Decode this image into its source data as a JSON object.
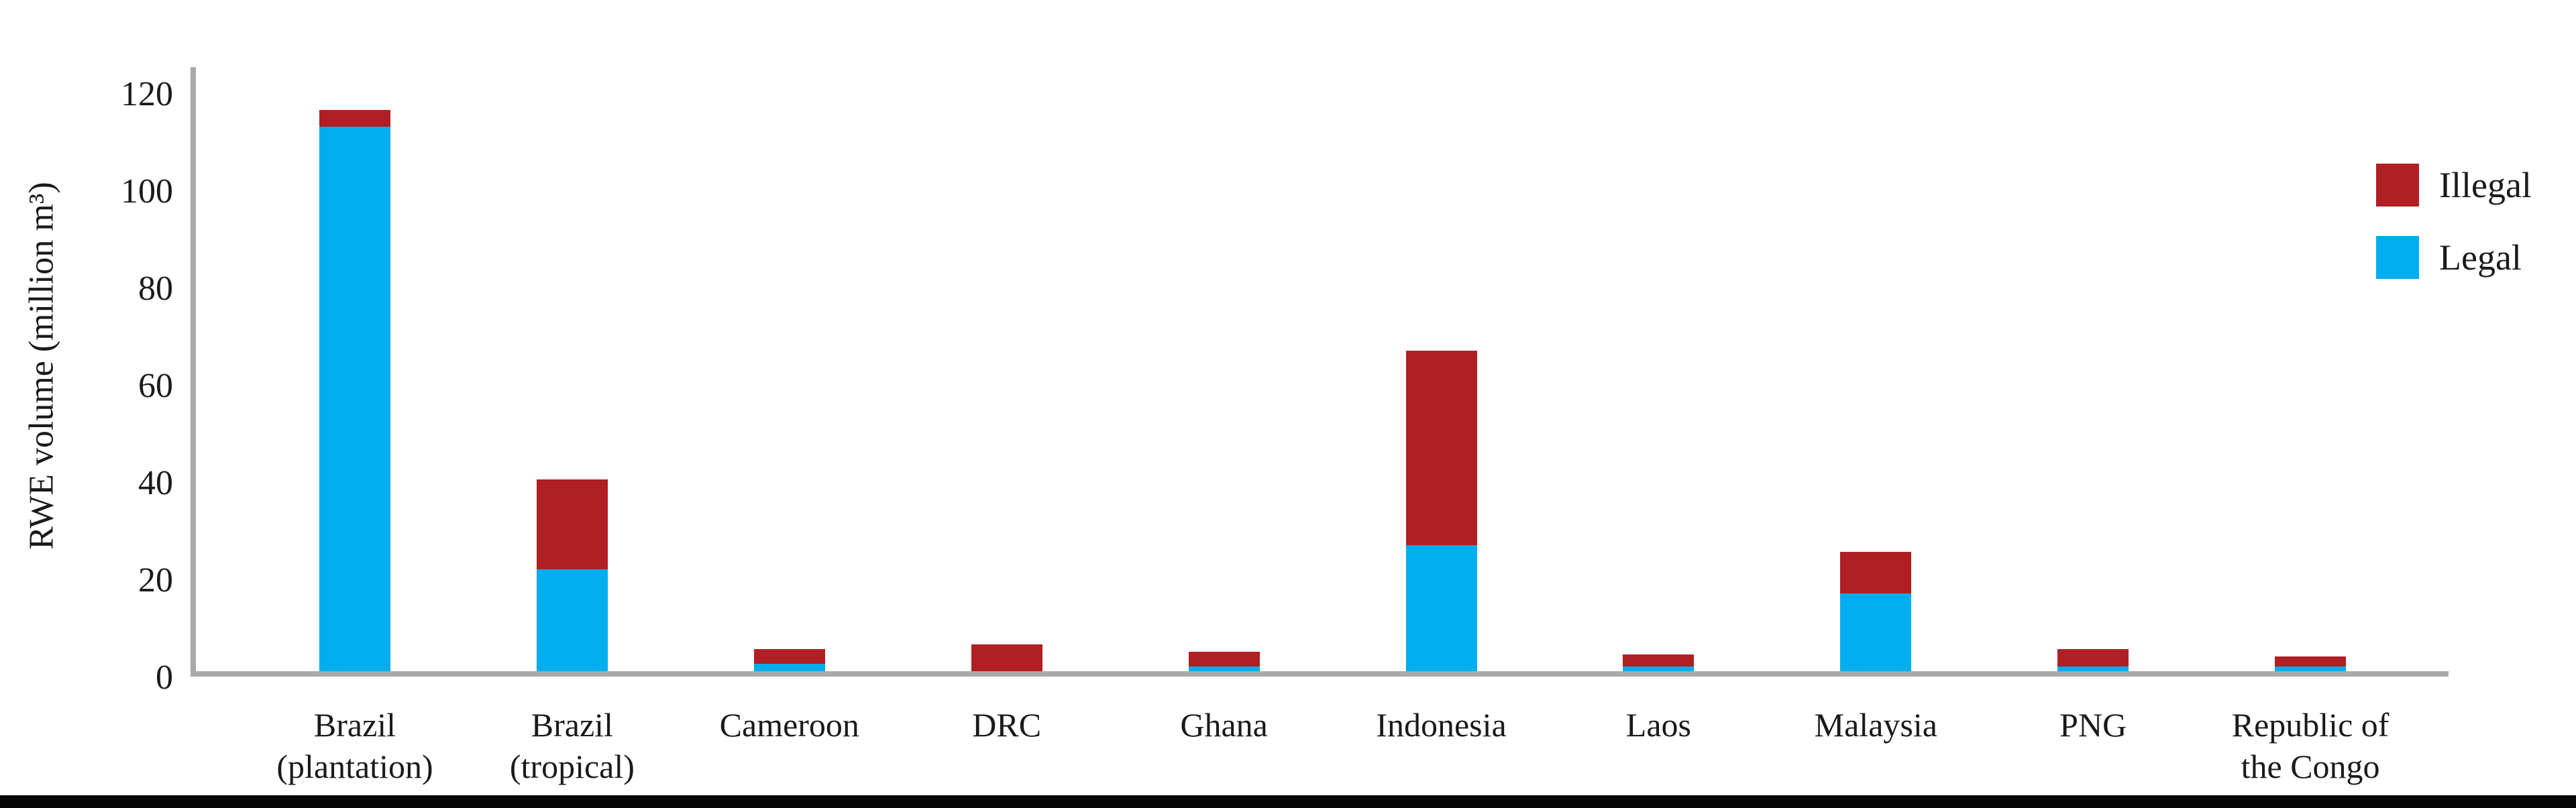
{
  "chart_data": {
    "type": "bar",
    "stacked": true,
    "title": "",
    "xlabel": "",
    "ylabel": "RWE volume (million m³)",
    "ylim": [
      0,
      120
    ],
    "yticks": [
      0,
      20,
      40,
      60,
      80,
      100,
      120
    ],
    "grid": false,
    "legend_position": "right",
    "categories": [
      "Brazil (plantation)",
      "Brazil (tropical)",
      "Cameroon",
      "DRC",
      "Ghana",
      "Indonesia",
      "Laos",
      "Malaysia",
      "PNG",
      "Republic of the Congo"
    ],
    "category_label_lines": [
      [
        "Brazil",
        "(plantation)"
      ],
      [
        "Brazil",
        "(tropical)"
      ],
      [
        "Cameroon"
      ],
      [
        "DRC"
      ],
      [
        "Ghana"
      ],
      [
        "Indonesia"
      ],
      [
        "Laos"
      ],
      [
        "Malaysia"
      ],
      [
        "PNG"
      ],
      [
        "Republic of",
        "the Congo"
      ]
    ],
    "series": [
      {
        "name": "Legal",
        "color": "#00ADEE",
        "values": [
          112,
          21,
          1.5,
          0,
          1,
          26,
          1,
          16,
          1,
          1
        ]
      },
      {
        "name": "Illegal",
        "color": "#B01F24",
        "values": [
          3.5,
          18.5,
          3,
          5.5,
          3,
          40,
          2.5,
          8.5,
          3.5,
          2
        ]
      }
    ],
    "legend": [
      {
        "label": "Illegal",
        "color": "#B01F24"
      },
      {
        "label": "Legal",
        "color": "#00ADEE"
      }
    ]
  },
  "colors": {
    "axis": "#A9A9A9",
    "text": "#1A1A1A",
    "footer_bar": "#060606"
  }
}
